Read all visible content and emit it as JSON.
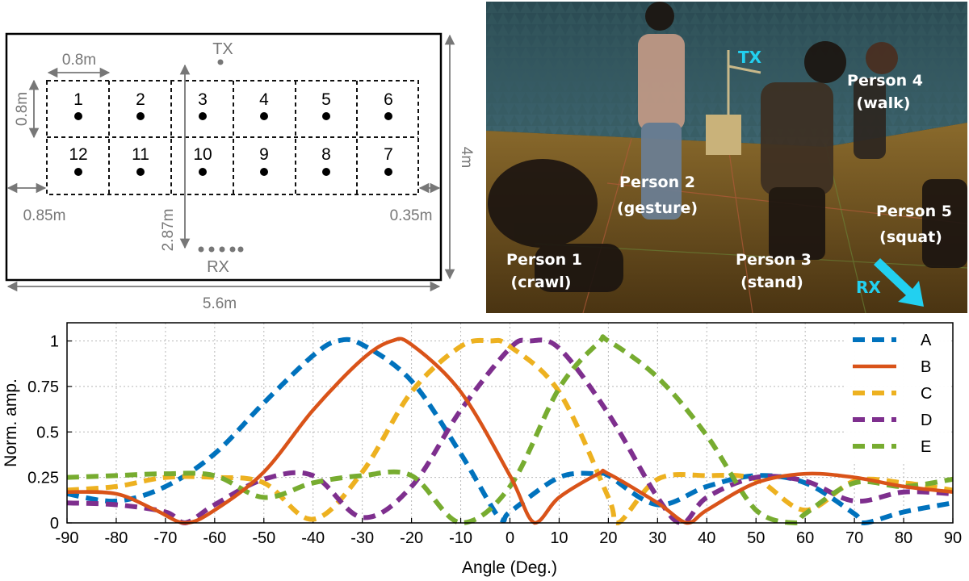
{
  "floor_plan": {
    "cells_top": [
      "1",
      "2",
      "3",
      "4",
      "5",
      "6"
    ],
    "cells_bottom": [
      "12",
      "11",
      "10",
      "9",
      "8",
      "7"
    ],
    "tx_label": "TX",
    "rx_label": "RX",
    "dim_cell_width": "0.8m",
    "dim_cell_height": "0.8m",
    "dim_left_margin": "0.85m",
    "dim_right_margin": "0.35m",
    "dim_tx_rx": "2.87m",
    "dim_room_height": "4m",
    "dim_room_width": "5.6m"
  },
  "photo": {
    "tx_label": "TX",
    "rx_label": "RX",
    "people": [
      {
        "name": "Person 1",
        "action": "(crawl)"
      },
      {
        "name": "Person 2",
        "action": "(gesture)"
      },
      {
        "name": "Person 3",
        "action": "(stand)"
      },
      {
        "name": "Person 4",
        "action": "(walk)"
      },
      {
        "name": "Person 5",
        "action": "(squat)"
      }
    ]
  },
  "colors": {
    "A": "#0072BD",
    "B": "#D95319",
    "C": "#EDB120",
    "D": "#7E2F8E",
    "E": "#77AC30"
  },
  "chart_data": {
    "type": "line",
    "xlabel": "Angle (Deg.)",
    "ylabel": "Norm. amp.",
    "xlim": [
      -90,
      90
    ],
    "ylim": [
      0,
      1.1
    ],
    "xticks": [
      "-90",
      "-80",
      "-70",
      "-60",
      "-50",
      "-40",
      "-30",
      "-20",
      "-10",
      "0",
      "10",
      "20",
      "30",
      "40",
      "50",
      "60",
      "70",
      "80",
      "90"
    ],
    "yticks": [
      "0",
      "0.25",
      "0.5",
      "0.75",
      "1"
    ],
    "grid": true,
    "legend_position": "top-right",
    "series": [
      {
        "name": "A",
        "style": "dashed",
        "x": [
          -90,
          -80,
          -70,
          -60,
          -50,
          -40,
          -35,
          -30,
          -20,
          -10,
          -2,
          0,
          10,
          18,
          20,
          30,
          40,
          50,
          60,
          70,
          72,
          80,
          90
        ],
        "y": [
          0.16,
          0.12,
          0.2,
          0.38,
          0.66,
          0.92,
          1.0,
          0.98,
          0.78,
          0.38,
          0.02,
          0.06,
          0.25,
          0.27,
          0.26,
          0.1,
          0.2,
          0.26,
          0.22,
          0.05,
          0.0,
          0.06,
          0.11
        ]
      },
      {
        "name": "B",
        "style": "solid",
        "x": [
          -90,
          -80,
          -72,
          -66,
          -60,
          -50,
          -40,
          -30,
          -24,
          -20,
          -10,
          0,
          5,
          10,
          18,
          20,
          30,
          36,
          40,
          50,
          60,
          70,
          80,
          90
        ],
        "y": [
          0.17,
          0.16,
          0.07,
          0.0,
          0.07,
          0.28,
          0.62,
          0.9,
          1.0,
          0.98,
          0.72,
          0.26,
          0.0,
          0.14,
          0.27,
          0.27,
          0.11,
          0.0,
          0.07,
          0.22,
          0.27,
          0.25,
          0.2,
          0.17
        ]
      },
      {
        "name": "C",
        "style": "dashed",
        "x": [
          -90,
          -80,
          -70,
          -60,
          -50,
          -40,
          -30,
          -20,
          -10,
          -4,
          0,
          10,
          20,
          22,
          30,
          40,
          50,
          60,
          70,
          80,
          90
        ],
        "y": [
          0.18,
          0.2,
          0.25,
          0.25,
          0.22,
          0.02,
          0.28,
          0.72,
          0.97,
          1.0,
          0.97,
          0.72,
          0.14,
          0.0,
          0.24,
          0.26,
          0.24,
          0.07,
          0.23,
          0.22,
          0.18
        ]
      },
      {
        "name": "D",
        "style": "dashed",
        "x": [
          -90,
          -80,
          -70,
          -66,
          -60,
          -50,
          -40,
          -30,
          -20,
          -10,
          0,
          4,
          10,
          20,
          30,
          35,
          40,
          50,
          60,
          70,
          80,
          90
        ],
        "y": [
          0.11,
          0.1,
          0.06,
          0.0,
          0.1,
          0.24,
          0.26,
          0.03,
          0.2,
          0.62,
          0.96,
          1.0,
          0.96,
          0.6,
          0.14,
          0.0,
          0.14,
          0.25,
          0.23,
          0.12,
          0.17,
          0.16
        ]
      },
      {
        "name": "E",
        "style": "dashed",
        "x": [
          -90,
          -80,
          -70,
          -60,
          -50,
          -40,
          -30,
          -20,
          -10,
          0,
          10,
          18,
          20,
          30,
          40,
          50,
          58,
          60,
          70,
          80,
          90
        ],
        "y": [
          0.25,
          0.26,
          0.27,
          0.26,
          0.14,
          0.22,
          0.26,
          0.26,
          0.0,
          0.2,
          0.74,
          0.99,
          1.0,
          0.8,
          0.48,
          0.07,
          0.0,
          0.05,
          0.22,
          0.2,
          0.24
        ]
      }
    ]
  }
}
